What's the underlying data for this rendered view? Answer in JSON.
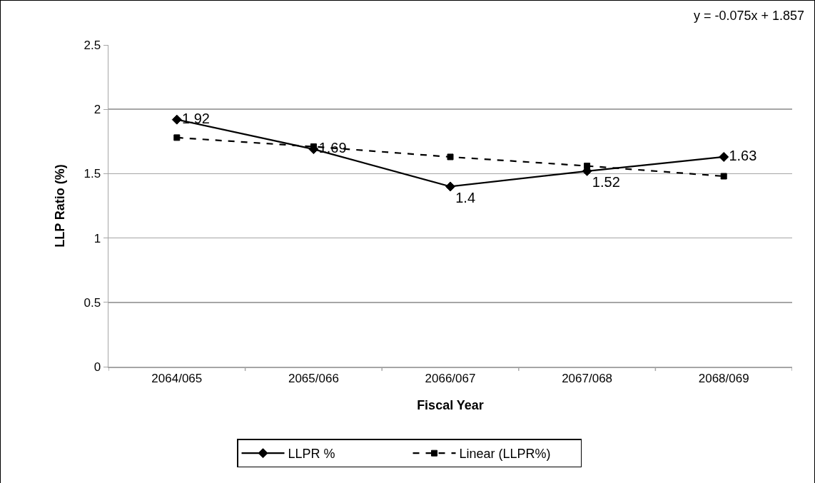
{
  "chart_data": {
    "type": "line",
    "xlabel": "Fiscal Year",
    "ylabel": "LLP Ratio (%)",
    "categories": [
      "2064/065",
      "2065/066",
      "2066/067",
      "2067/068",
      "2068/069"
    ],
    "series": [
      {
        "name": "LLPR %",
        "color": "#000000",
        "marker": "diamond",
        "line_style": "solid",
        "values": [
          1.92,
          1.69,
          1.4,
          1.52,
          1.63
        ],
        "value_labels": [
          "1.92",
          "1.69",
          "1.4",
          "1.52",
          "1.63"
        ]
      },
      {
        "name": "Linear (LLPR%)",
        "color": "#000000",
        "marker": "square",
        "line_style": "dashed",
        "values": [
          1.78,
          1.71,
          1.63,
          1.56,
          1.48
        ]
      }
    ],
    "annotations": [
      "y = -0.075x + 1.857"
    ],
    "ylim": [
      0,
      2.5
    ],
    "yticks": [
      0,
      0.5,
      1,
      1.5,
      2,
      2.5
    ],
    "grid": "y",
    "legend": "bottom"
  }
}
